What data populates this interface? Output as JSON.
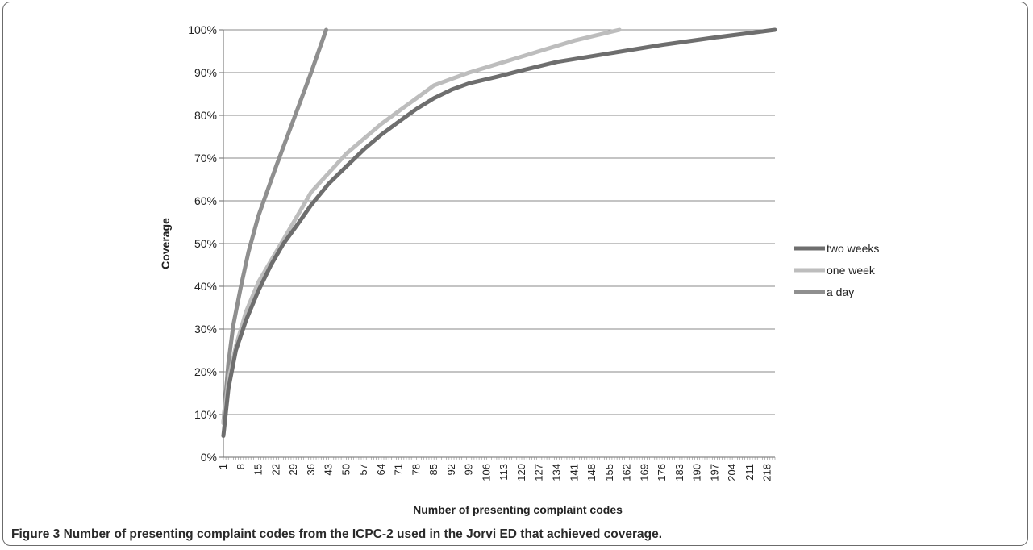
{
  "figure": {
    "label": "Figure 3",
    "caption": "Number of presenting complaint codes from the ICPC-2 used in the Jorvi ED that achieved coverage."
  },
  "chart_data": {
    "type": "line",
    "xlabel": "Number of presenting complaint codes",
    "ylabel": "Coverage",
    "ylim": [
      0,
      100
    ],
    "y_ticks": [
      "0%",
      "10%",
      "20%",
      "30%",
      "40%",
      "50%",
      "60%",
      "70%",
      "80%",
      "90%",
      "100%"
    ],
    "x_ticks": [
      1,
      8,
      15,
      22,
      29,
      36,
      43,
      50,
      57,
      64,
      71,
      78,
      85,
      92,
      99,
      106,
      113,
      120,
      127,
      134,
      141,
      148,
      155,
      162,
      169,
      176,
      183,
      190,
      197,
      204,
      211,
      218
    ],
    "xlim": [
      1,
      221
    ],
    "grid": "horizontal",
    "legend_position": "right",
    "series": [
      {
        "name": "two weeks",
        "color": "#6e6e6e",
        "x": [
          1,
          3,
          6,
          10,
          15,
          20,
          25,
          30,
          36,
          43,
          50,
          57,
          64,
          71,
          78,
          85,
          92,
          99,
          110,
          120,
          134,
          155,
          176,
          197,
          221
        ],
        "y": [
          5,
          16,
          25,
          32,
          39,
          45,
          50,
          54,
          59,
          64,
          68,
          72,
          75.5,
          78.5,
          81.5,
          84,
          86,
          87.5,
          89,
          90.5,
          92.5,
          94.5,
          96.5,
          98.2,
          100
        ]
      },
      {
        "name": "one week",
        "color": "#bdbdbd",
        "x": [
          1,
          3,
          6,
          10,
          15,
          22,
          29,
          36,
          43,
          50,
          57,
          64,
          71,
          78,
          85,
          92,
          99,
          113,
          127,
          141,
          159
        ],
        "y": [
          8,
          18,
          26,
          34,
          41,
          48,
          55,
          62,
          66.5,
          71,
          74.5,
          78,
          81,
          84,
          87,
          88.5,
          90,
          92.5,
          95,
          97.5,
          100
        ]
      },
      {
        "name": "a day",
        "color": "#8f8f8f",
        "x": [
          1,
          3,
          5,
          8,
          11,
          15,
          22,
          29,
          36,
          42
        ],
        "y": [
          8,
          22,
          31,
          40,
          48,
          56.5,
          68,
          79,
          90,
          100
        ]
      }
    ]
  }
}
